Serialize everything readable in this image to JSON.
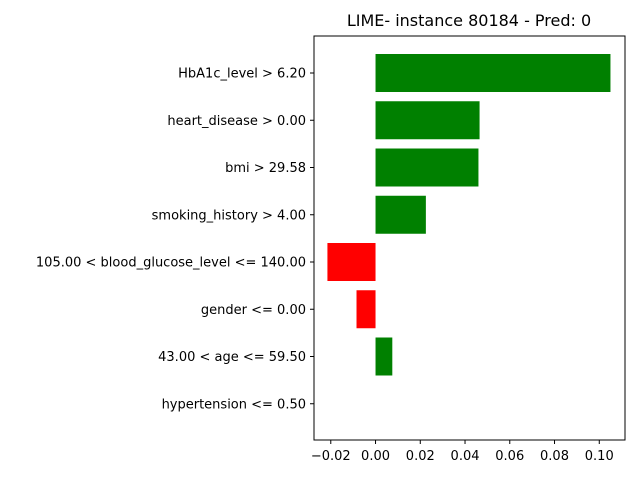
{
  "chart_data": {
    "type": "bar",
    "orientation": "horizontal",
    "title": "LIME- instance 80184 - Pred: 0",
    "xlabel": "",
    "ylabel": "",
    "categories": [
      "HbA1c_level > 6.20",
      "heart_disease > 0.00",
      "bmi > 29.58",
      "smoking_history > 4.00",
      "105.00 < blood_glucose_level <= 140.00",
      "gender <= 0.00",
      "43.00 < age <= 59.50",
      "hypertension <= 0.50"
    ],
    "values": [
      0.105,
      0.0465,
      0.046,
      0.0225,
      -0.0215,
      -0.0085,
      0.0075,
      0.0
    ],
    "xlim": [
      -0.0275,
      0.1115
    ],
    "xticks": [
      -0.02,
      0.0,
      0.02,
      0.04,
      0.06,
      0.08,
      0.1
    ],
    "xtick_labels": [
      "−0.02",
      "0.00",
      "0.02",
      "0.04",
      "0.06",
      "0.08",
      "0.10"
    ],
    "colors": {
      "positive": "#008000",
      "negative": "#ff0000"
    },
    "grid": false,
    "legend": "none"
  }
}
